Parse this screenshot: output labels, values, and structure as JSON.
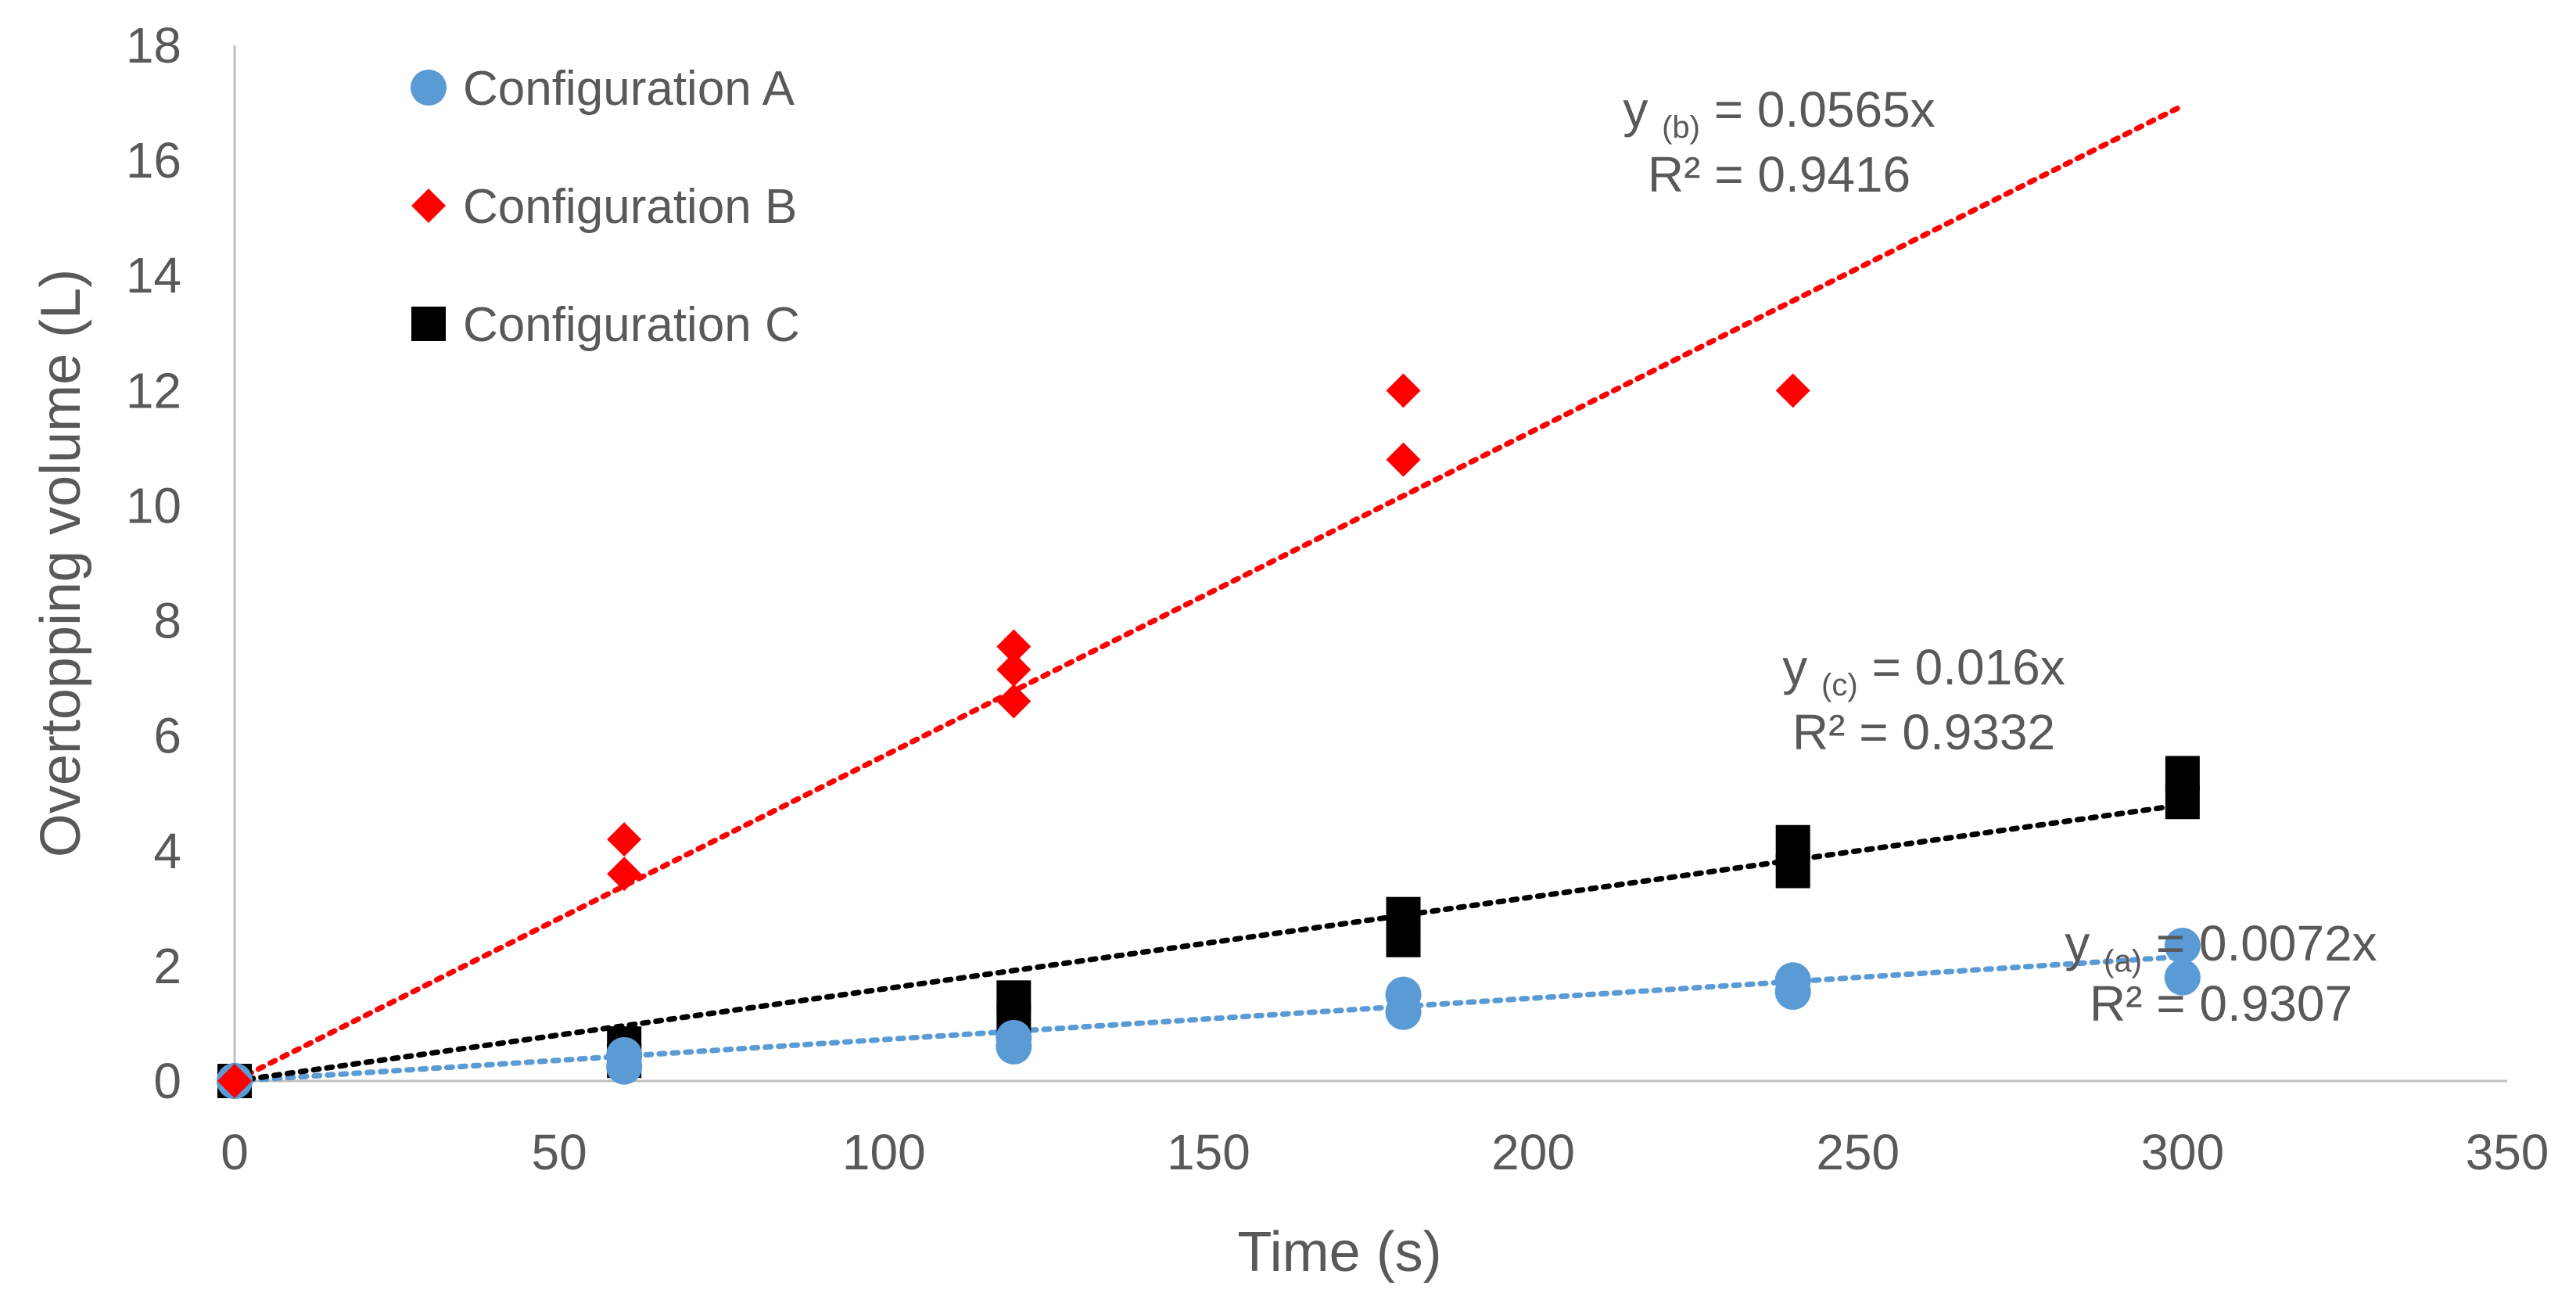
{
  "chart_data": {
    "type": "scatter",
    "xlabel": "Time (s)",
    "ylabel": "Overtopping volume (L)",
    "xlim": [
      0,
      350
    ],
    "ylim": [
      0,
      18
    ],
    "xticks": [
      0,
      50,
      100,
      150,
      200,
      250,
      300,
      350
    ],
    "yticks": [
      0,
      2,
      4,
      6,
      8,
      10,
      12,
      14,
      16,
      18
    ],
    "grid": false,
    "legend_position": "top-left",
    "series": [
      {
        "name": "Configuration A",
        "marker": "circle",
        "color": "#5b9bd5",
        "points": [
          [
            0,
            0
          ],
          [
            0,
            0
          ],
          [
            60,
            0.25
          ],
          [
            60,
            0.45
          ],
          [
            120,
            0.6
          ],
          [
            120,
            0.75
          ],
          [
            180,
            1.2
          ],
          [
            180,
            1.5
          ],
          [
            240,
            1.55
          ],
          [
            240,
            1.75
          ],
          [
            300,
            1.8
          ],
          [
            300,
            2.35
          ]
        ],
        "trendline": {
          "slope": 0.0072,
          "x_end": 300,
          "eq_prefix": "y ",
          "eq_sub": "(a)",
          "eq_suffix": " = 0.0072x",
          "r2": "R² = 0.9307"
        }
      },
      {
        "name": "Configuration B",
        "marker": "diamond",
        "color": "#ff0000",
        "points": [
          [
            0,
            0
          ],
          [
            60,
            3.6
          ],
          [
            60,
            4.2
          ],
          [
            120,
            6.6
          ],
          [
            120,
            7.15
          ],
          [
            120,
            7.55
          ],
          [
            180,
            10.8
          ],
          [
            180,
            12.0
          ],
          [
            240,
            12.0
          ]
        ],
        "trendline": {
          "slope": 0.0565,
          "x_end": 300,
          "eq_prefix": "y ",
          "eq_sub": "(b)",
          "eq_suffix": " = 0.0565x",
          "r2": "R² = 0.9416"
        }
      },
      {
        "name": "Configuration C",
        "marker": "square",
        "color": "#000000",
        "points": [
          [
            0,
            0
          ],
          [
            60,
            0.35
          ],
          [
            60,
            0.65
          ],
          [
            120,
            1.05
          ],
          [
            120,
            1.45
          ],
          [
            180,
            2.45
          ],
          [
            180,
            2.9
          ],
          [
            240,
            3.65
          ],
          [
            240,
            4.15
          ],
          [
            300,
            4.85
          ],
          [
            300,
            5.35
          ]
        ],
        "trendline": {
          "slope": 0.016,
          "x_end": 300,
          "eq_prefix": "y ",
          "eq_sub": "(c)",
          "eq_suffix": " = 0.016x",
          "r2": "R² = 0.9332"
        }
      }
    ]
  }
}
